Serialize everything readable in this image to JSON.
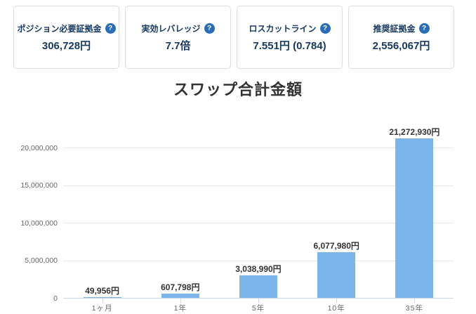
{
  "cards": [
    {
      "label": "ポジション必要証拠金",
      "value": "306,728円",
      "help_icon": "?"
    },
    {
      "label": "実効レバレッジ",
      "value": "7.7倍",
      "help_icon": "?"
    },
    {
      "label": "ロスカットライン",
      "value": "7.551円 (0.784)",
      "help_icon": "?"
    },
    {
      "label": "推奨証拠金",
      "value": "2,556,067円",
      "help_icon": "?"
    }
  ],
  "chart_data": {
    "type": "bar",
    "title": "スワップ合計金額",
    "categories": [
      "1ヶ月",
      "1年",
      "5年",
      "10年",
      "35年"
    ],
    "values": [
      49956,
      607798,
      3038990,
      6077980,
      21272930
    ],
    "value_labels": [
      "49,956円",
      "607,798円",
      "3,038,990円",
      "6,077,980円",
      "21,272,930円"
    ],
    "yticks": [
      0,
      5000000,
      10000000,
      15000000,
      20000000
    ],
    "ytick_labels": [
      "0",
      "5,000,000",
      "10,000,000",
      "15,000,000",
      "20,000,000"
    ],
    "ylim": [
      0,
      22000000
    ],
    "xlabel": "",
    "ylabel": "",
    "grid": true,
    "legend": "none"
  },
  "colors": {
    "bar": "#7cb5ec",
    "axis_line": "#ccd6eb",
    "gridline": "#e6e6e6",
    "axis_text": "#666666",
    "title_text": "#333333",
    "card_text": "#17385f",
    "help_icon_bg": "#2a6db4"
  }
}
